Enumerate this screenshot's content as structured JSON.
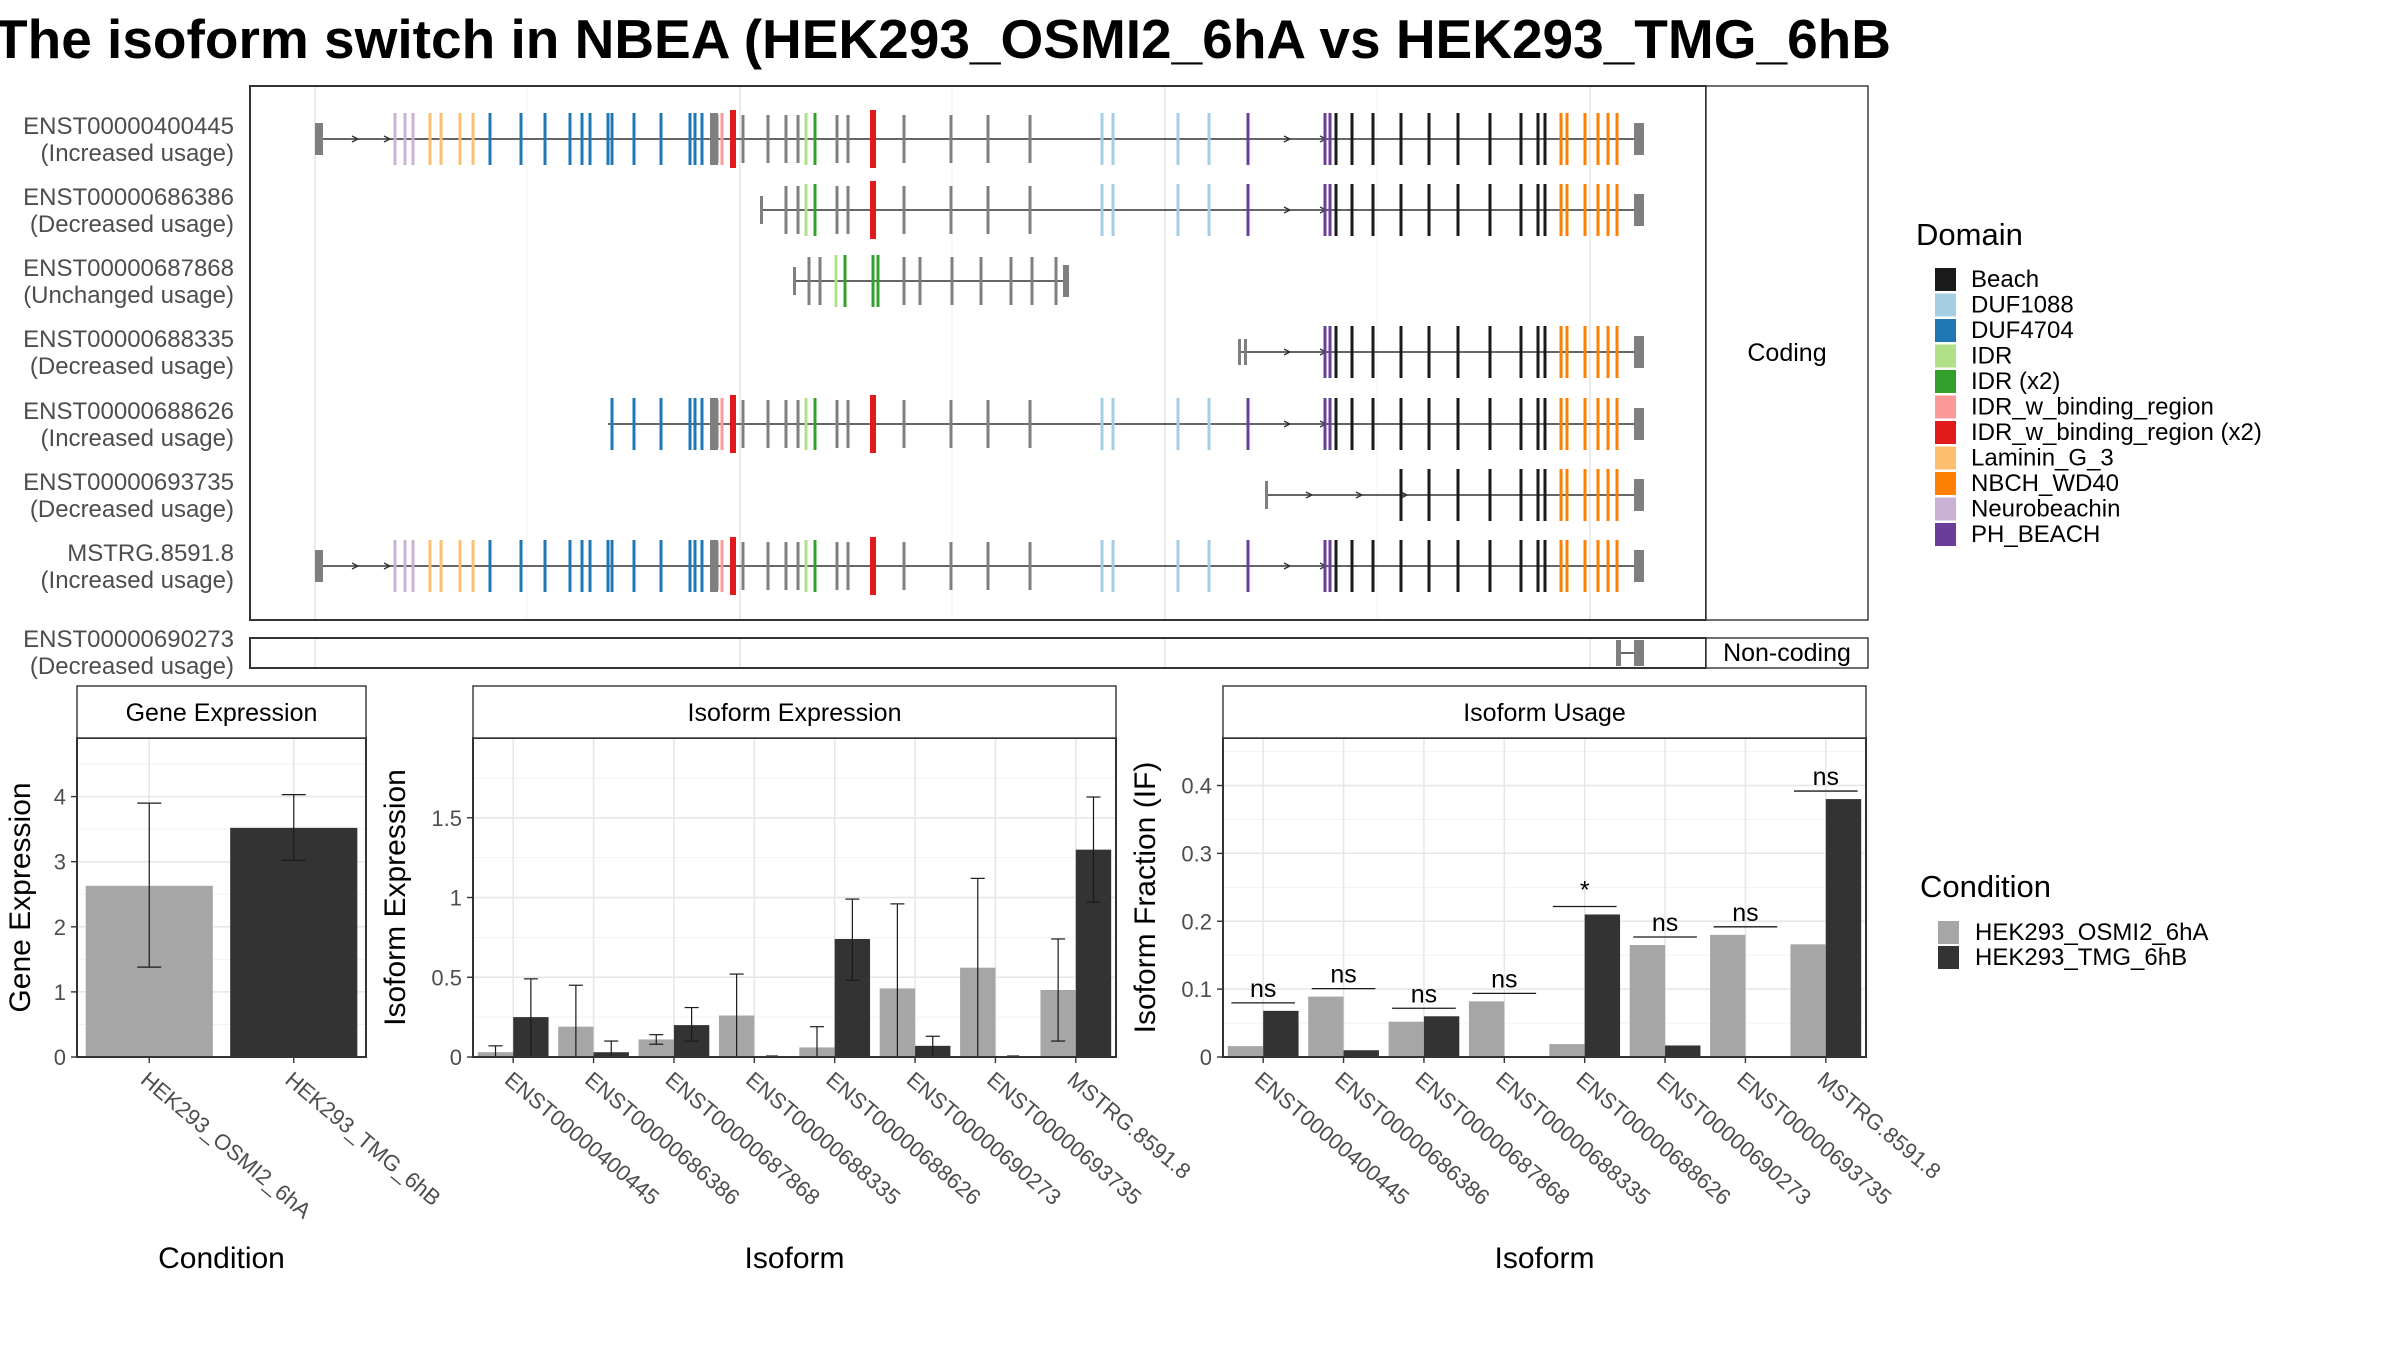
{
  "title": "The isoform switch in NBEA (HEK293_OSMI2_6hA vs HEK293_TMG_6hB",
  "colors": {
    "Beach": "#1a1a1a",
    "DUF1088": "#a6cee3",
    "DUF4704": "#1f78b4",
    "IDR": "#b2df8a",
    "IDR (x2)": "#33a02c",
    "IDR_w_binding_region": "#fb9a99",
    "IDR_w_binding_region (x2)": "#e31a1c",
    "Laminin_G_3": "#fdbf6f",
    "NBCH_WD40": "#ff7f00",
    "Neurobeachin": "#cab2d6",
    "PH_BEACH": "#6a3d9a",
    "utr": "#7f7f7f",
    "condA": "#a6a6a6",
    "condB": "#333333"
  },
  "transcripts": {
    "coding_strip": "Coding",
    "noncoding_strip": "Non-coding",
    "coding": [
      {
        "id": "ENST00000400445",
        "usage": "(Increased usage)"
      },
      {
        "id": "ENST00000686386",
        "usage": "(Decreased usage)"
      },
      {
        "id": "ENST00000687868",
        "usage": "(Unchanged usage)"
      },
      {
        "id": "ENST00000688335",
        "usage": "(Decreased usage)"
      },
      {
        "id": "ENST00000688626",
        "usage": "(Increased usage)"
      },
      {
        "id": "ENST00000693735",
        "usage": "(Decreased usage)"
      },
      {
        "id": "MSTRG.8591.8",
        "usage": "(Increased usage)"
      }
    ],
    "noncoding": [
      {
        "id": "ENST00000690273",
        "usage": "(Decreased usage)"
      }
    ]
  },
  "domain_legend": {
    "title": "Domain",
    "items": [
      "Beach",
      "DUF1088",
      "DUF4704",
      "IDR",
      "IDR (x2)",
      "IDR_w_binding_region",
      "IDR_w_binding_region (x2)",
      "Laminin_G_3",
      "NBCH_WD40",
      "Neurobeachin",
      "PH_BEACH"
    ]
  },
  "condition_legend": {
    "title": "Condition",
    "items": [
      "HEK293_OSMI2_6hA",
      "HEK293_TMG_6hB"
    ]
  },
  "chart_data": [
    {
      "type": "bar",
      "title": "Gene Expression",
      "xlabel": "Condition",
      "ylabel": "Gene Expression",
      "ylim": [
        0,
        4.9
      ],
      "yticks": [
        0,
        1,
        2,
        3,
        4
      ],
      "categories": [
        "HEK293_OSMI2_6hA",
        "HEK293_TMG_6hB"
      ],
      "values": [
        2.63,
        3.52
      ],
      "error_low": [
        1.38,
        3.02
      ],
      "error_high": [
        3.9,
        4.03
      ]
    },
    {
      "type": "bar",
      "title": "Isoform Expression",
      "xlabel": "Isoform",
      "ylabel": "Isoform Expression",
      "ylim": [
        0,
        2.0
      ],
      "yticks": [
        0.0,
        0.5,
        1.0,
        1.5
      ],
      "categories": [
        "ENST00000400445",
        "ENST00000686386",
        "ENST00000687868",
        "ENST00000688335",
        "ENST00000688626",
        "ENST00000690273",
        "ENST00000693735",
        "MSTRG.8591.8"
      ],
      "series": [
        {
          "name": "HEK293_OSMI2_6hA",
          "values": [
            0.03,
            0.19,
            0.11,
            0.26,
            0.06,
            0.43,
            0.56,
            0.42
          ],
          "error_low": [
            0.0,
            0.0,
            0.08,
            0.0,
            0.0,
            0.0,
            0.0,
            0.1
          ],
          "error_high": [
            0.07,
            0.45,
            0.14,
            0.52,
            0.19,
            0.96,
            1.12,
            0.74
          ]
        },
        {
          "name": "HEK293_TMG_6hB",
          "values": [
            0.25,
            0.03,
            0.2,
            0.0,
            0.74,
            0.07,
            0.0,
            1.3
          ],
          "error_low": [
            0.0,
            0.0,
            0.1,
            0.0,
            0.48,
            0.0,
            0.0,
            0.97
          ],
          "error_high": [
            0.49,
            0.1,
            0.31,
            0.0,
            0.99,
            0.13,
            0.0,
            1.63
          ]
        }
      ]
    },
    {
      "type": "bar",
      "title": "Isoform Usage",
      "xlabel": "Isoform",
      "ylabel": "Isoform Fraction (IF)",
      "ylim": [
        0,
        0.47
      ],
      "yticks": [
        0.0,
        0.1,
        0.2,
        0.3,
        0.4
      ],
      "categories": [
        "ENST00000400445",
        "ENST00000686386",
        "ENST00000687868",
        "ENST00000688335",
        "ENST00000688626",
        "ENST00000690273",
        "ENST00000693735",
        "MSTRG.8591.8"
      ],
      "series": [
        {
          "name": "HEK293_OSMI2_6hA",
          "values": [
            0.016,
            0.089,
            0.052,
            0.082,
            0.019,
            0.165,
            0.18,
            0.166
          ]
        },
        {
          "name": "HEK293_TMG_6hB",
          "values": [
            0.068,
            0.01,
            0.06,
            0.0,
            0.21,
            0.017,
            0.0,
            0.38
          ]
        }
      ],
      "significance": [
        "ns",
        "ns",
        "ns",
        "ns",
        "*",
        "ns",
        "ns",
        "ns"
      ]
    }
  ]
}
